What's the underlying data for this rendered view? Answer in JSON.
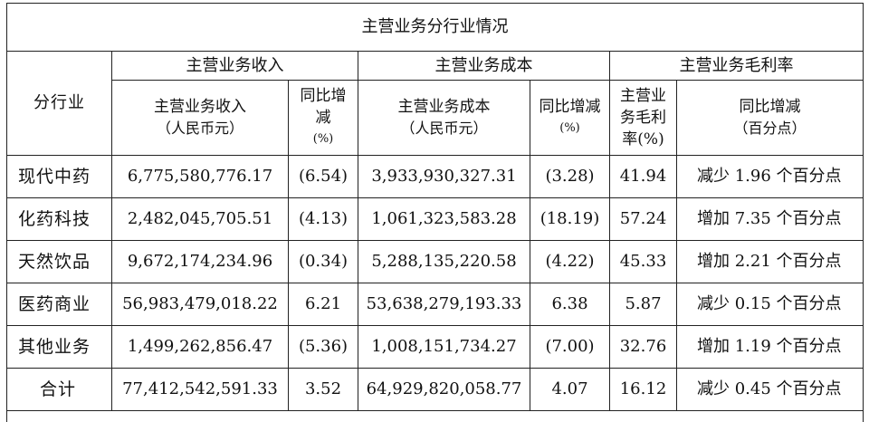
{
  "table": {
    "title": "主营业务分行业情况",
    "groups": {
      "revenue": "主营业务收入",
      "cost": "主营业务成本",
      "margin": "主营业务毛利率"
    },
    "headers": {
      "segment": "分行业",
      "revenue_main": "主营业务收入",
      "revenue_unit": "（人民币元）",
      "revenue_yoy_1": "同比增",
      "revenue_yoy_2": "减",
      "revenue_yoy_3": "(%)",
      "cost_main": "主营业务成本",
      "cost_unit": "（人民币元）",
      "cost_yoy_1": "同比增减",
      "cost_yoy_2": "(%)",
      "margin_1": "主营业",
      "margin_2": "务毛利",
      "margin_3": "率(%)",
      "margin_yoy_1": "同比增减",
      "margin_yoy_2": "（百分点）"
    },
    "rows": [
      {
        "segment": "现代中药",
        "revenue": "6,775,580,776.17",
        "revenue_yoy": "(6.54)",
        "cost": "3,933,930,327.31",
        "cost_yoy": "(3.28)",
        "margin": "41.94",
        "margin_change": "减少 1.96 个百分点"
      },
      {
        "segment": "化药科技",
        "revenue": "2,482,045,705.51",
        "revenue_yoy": "(4.13)",
        "cost": "1,061,323,583.28",
        "cost_yoy": "(18.19)",
        "margin": "57.24",
        "margin_change": "增加 7.35 个百分点"
      },
      {
        "segment": "天然饮品",
        "revenue": "9,672,174,234.96",
        "revenue_yoy": "(0.34)",
        "cost": "5,288,135,220.58",
        "cost_yoy": "(4.22)",
        "margin": "45.33",
        "margin_change": "增加 2.21 个百分点"
      },
      {
        "segment": "医药商业",
        "revenue": "56,983,479,018.22",
        "revenue_yoy": "6.21",
        "cost": "53,638,279,193.33",
        "cost_yoy": "6.38",
        "margin": "5.87",
        "margin_change": "减少 0.15 个百分点"
      },
      {
        "segment": "其他业务",
        "revenue": "1,499,262,856.47",
        "revenue_yoy": "(5.36)",
        "cost": "1,008,151,734.27",
        "cost_yoy": "(7.00)",
        "margin": "32.76",
        "margin_change": "增加 1.19 个百分点"
      },
      {
        "segment": "合计",
        "revenue": "77,412,542,591.33",
        "revenue_yoy": "3.52",
        "cost": "64,929,820,058.77",
        "cost_yoy": "4.07",
        "margin": "16.12",
        "margin_change": "减少 0.45 个百分点"
      }
    ]
  }
}
